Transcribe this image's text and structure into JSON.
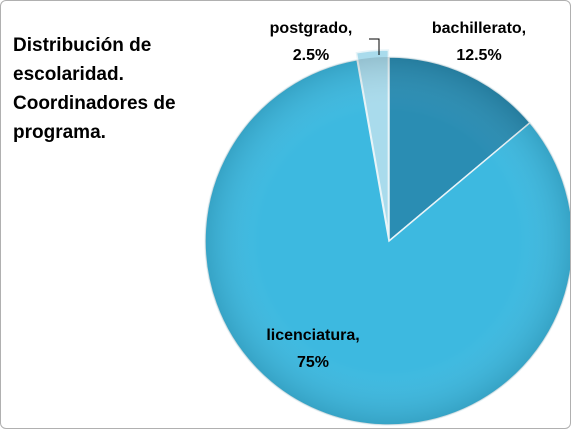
{
  "chart_data": {
    "type": "pie",
    "title": "Distribución de escolaridad. Coordinadores de programa.",
    "categories": [
      "bachillerato,",
      "licenciatura,",
      "postgrado,"
    ],
    "values": [
      12.5,
      75,
      2.5
    ],
    "value_labels": [
      "12.5%",
      "75%",
      "2.5%"
    ],
    "colors": [
      "#2a8db3",
      "#3db9e0",
      "#a9dbec"
    ]
  }
}
